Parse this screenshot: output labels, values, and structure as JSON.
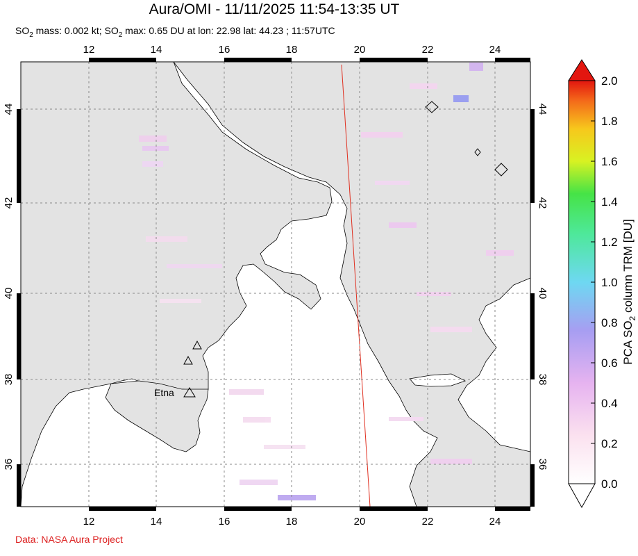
{
  "title": "Aura/OMI - 11/11/2025 11:54-13:35 UT",
  "subtitle": {
    "mass_label": "SO",
    "mass_sub": "2",
    "mass_text": " mass: 0.002 kt; SO",
    "max_sub": "2",
    "max_text": " max: 0.65 DU at lon: 22.98 lat: 44.23 ; 11:57UTC"
  },
  "credit": "Data: NASA Aura Project",
  "map": {
    "lon_range": [
      10,
      25
    ],
    "lat_range": [
      35,
      45
    ],
    "lon_ticks": [
      "12",
      "14",
      "16",
      "18",
      "20",
      "22",
      "24"
    ],
    "lat_ticks": [
      "44",
      "42",
      "40",
      "38",
      "36"
    ],
    "volcano_label": "Etna",
    "land_color": "#e3e3e3",
    "grid": true
  },
  "colorbar": {
    "label_prefix": "PCA SO",
    "label_sub": "2",
    "label_suffix": " column TRM [DU]",
    "ticks": [
      "0.0",
      "0.2",
      "0.4",
      "0.6",
      "0.8",
      "1.0",
      "1.2",
      "1.4",
      "1.6",
      "1.8",
      "2.0"
    ],
    "range": [
      0,
      2
    ]
  }
}
